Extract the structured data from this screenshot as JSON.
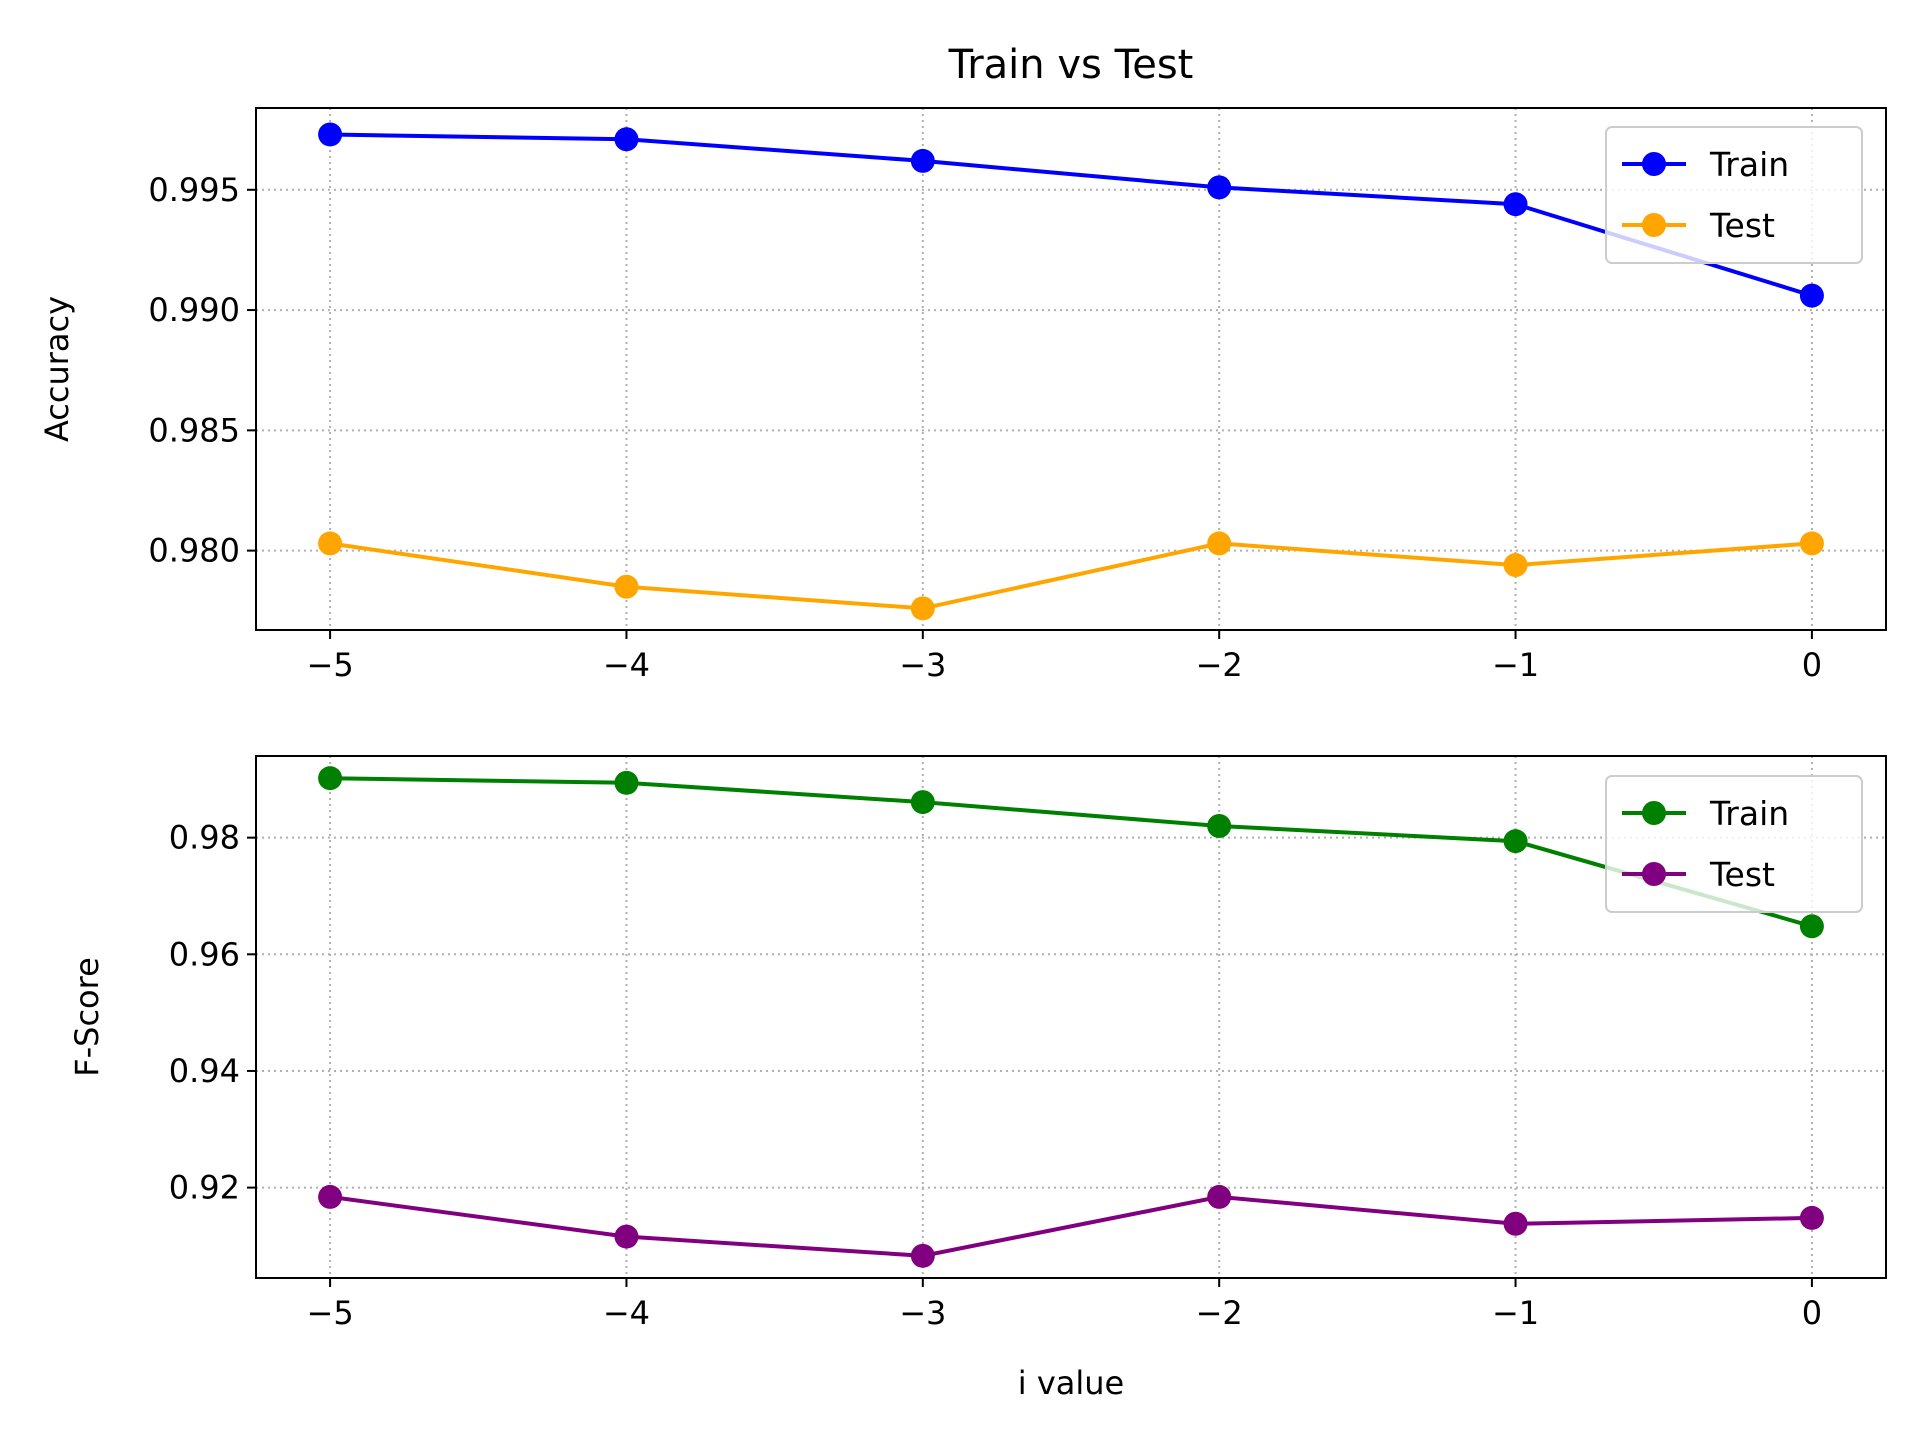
{
  "figure": {
    "title": "Train vs Test",
    "xlabel": "i value"
  },
  "chart_data": [
    {
      "type": "line",
      "title": "Train vs Test",
      "xlabel": "",
      "ylabel": "Accuracy",
      "x": [
        -5,
        -4,
        -3,
        -2,
        -1,
        0
      ],
      "xticks": [
        -5,
        -4,
        -3,
        -2,
        -1,
        0
      ],
      "xtick_labels": [
        "−5",
        "−4",
        "−3",
        "−2",
        "−1",
        "0"
      ],
      "xlim": [
        -5.25,
        0.25
      ],
      "yticks": [
        0.98,
        0.985,
        0.99,
        0.995
      ],
      "ytick_labels": [
        "0.980",
        "0.985",
        "0.990",
        "0.995"
      ],
      "ylim": [
        0.9767,
        0.9984
      ],
      "grid": true,
      "legend": "top-right",
      "series": [
        {
          "name": "Train",
          "color": "#0000ff",
          "values": [
            0.9973,
            0.9971,
            0.9962,
            0.9951,
            0.9944,
            0.9906
          ]
        },
        {
          "name": "Test",
          "color": "#ffa500",
          "values": [
            0.9803,
            0.9785,
            0.9776,
            0.9803,
            0.9794,
            0.9803
          ]
        }
      ]
    },
    {
      "type": "line",
      "title": "",
      "xlabel": "i value",
      "ylabel": "F-Score",
      "x": [
        -5,
        -4,
        -3,
        -2,
        -1,
        0
      ],
      "xticks": [
        -5,
        -4,
        -3,
        -2,
        -1,
        0
      ],
      "xtick_labels": [
        "−5",
        "−4",
        "−3",
        "−2",
        "−1",
        "0"
      ],
      "xlim": [
        -5.25,
        0.25
      ],
      "yticks": [
        0.92,
        0.94,
        0.96,
        0.98
      ],
      "ytick_labels": [
        "0.92",
        "0.94",
        "0.96",
        "0.98"
      ],
      "ylim": [
        0.9045,
        0.994
      ],
      "grid": true,
      "legend": "top-right",
      "series": [
        {
          "name": "Train",
          "color": "#008000",
          "values": [
            0.9902,
            0.9894,
            0.9861,
            0.982,
            0.9794,
            0.9648
          ]
        },
        {
          "name": "Test",
          "color": "#800080",
          "values": [
            0.9184,
            0.9116,
            0.9083,
            0.9184,
            0.9138,
            0.9148
          ]
        }
      ]
    }
  ]
}
